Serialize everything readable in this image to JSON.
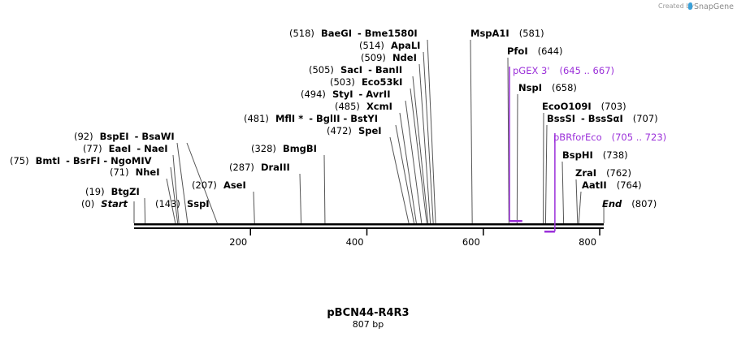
{
  "credit": {
    "prefix": "Created by",
    "brand": "SnapGene"
  },
  "plasmid": {
    "name": "pBCN44-R4R3",
    "length_label": "807 bp",
    "length": 807
  },
  "ruler": {
    "ticks": [
      "200",
      "400",
      "600",
      "800"
    ]
  },
  "features": [
    {
      "name": "Start",
      "pos": "(0)",
      "site": 0,
      "style": "italic"
    },
    {
      "name": "End",
      "pos": "(807)",
      "site": 807,
      "style": "italic"
    },
    {
      "name": "BtgZI",
      "pos": "(19)",
      "site": 19
    },
    {
      "name": "SspI",
      "pos": "(143)",
      "site": 143
    },
    {
      "name": "AseI",
      "pos": "(207)",
      "site": 207
    },
    {
      "name": "NheI",
      "pos": "(71)",
      "site": 71
    },
    {
      "name": "BmtI",
      "extra": "- BsrFI  - NgoMIV",
      "pos": "(75)",
      "site": 75
    },
    {
      "name": "EaeI",
      "extra": "- NaeI",
      "pos": "(77)",
      "site": 77
    },
    {
      "name": "BspEI",
      "extra": "- BsaWI",
      "pos": "(92)",
      "site": 92
    },
    {
      "name": "DraIII",
      "pos": "(287)",
      "site": 287
    },
    {
      "name": "BmgBI",
      "pos": "(328)",
      "site": 328
    },
    {
      "name": "SpeI",
      "pos": "(472)",
      "site": 472
    },
    {
      "name": "MflI *",
      "extra": "- BglII  - BstYI",
      "pos": "(481)",
      "site": 481
    },
    {
      "name": "XcmI",
      "pos": "(485)",
      "site": 485
    },
    {
      "name": "StyI",
      "extra": "- AvrII",
      "pos": "(494)",
      "site": 494
    },
    {
      "name": "Eco53kI",
      "pos": "(503)",
      "site": 503
    },
    {
      "name": "SacI",
      "extra": "- BanII",
      "pos": "(505)",
      "site": 505
    },
    {
      "name": "NdeI",
      "pos": "(509)",
      "site": 509
    },
    {
      "name": "ApaLI",
      "pos": "(514)",
      "site": 514
    },
    {
      "name": "BaeGI",
      "extra": "- Bme1580I",
      "pos": "(518)",
      "site": 518
    },
    {
      "name": "MspA1I",
      "pos": "(581)",
      "site": 581
    },
    {
      "name": "PfoI",
      "pos": "(644)",
      "site": 644
    },
    {
      "name": "NspI",
      "pos": "(658)",
      "site": 658
    },
    {
      "name": "EcoO109I",
      "pos": "(703)",
      "site": 703
    },
    {
      "name": "BssSI",
      "extra": "- BssSαI",
      "pos": "(707)",
      "site": 707
    },
    {
      "name": "BspHI",
      "pos": "(738)",
      "site": 738
    },
    {
      "name": "ZraI",
      "pos": "(762)",
      "site": 762
    },
    {
      "name": "AatII",
      "pos": "(764)",
      "site": 764
    }
  ],
  "primers": [
    {
      "name": "pGEX 3'",
      "range": "(645 .. 667)",
      "start": 645,
      "end": 667,
      "strand": "forward"
    },
    {
      "name": "pBRforEco",
      "range": "(705 .. 723)",
      "start": 705,
      "end": 723,
      "strand": "reverse"
    }
  ],
  "colors": {
    "primer": "#9b30d9",
    "backbone": "#000000",
    "line": "#555555"
  }
}
